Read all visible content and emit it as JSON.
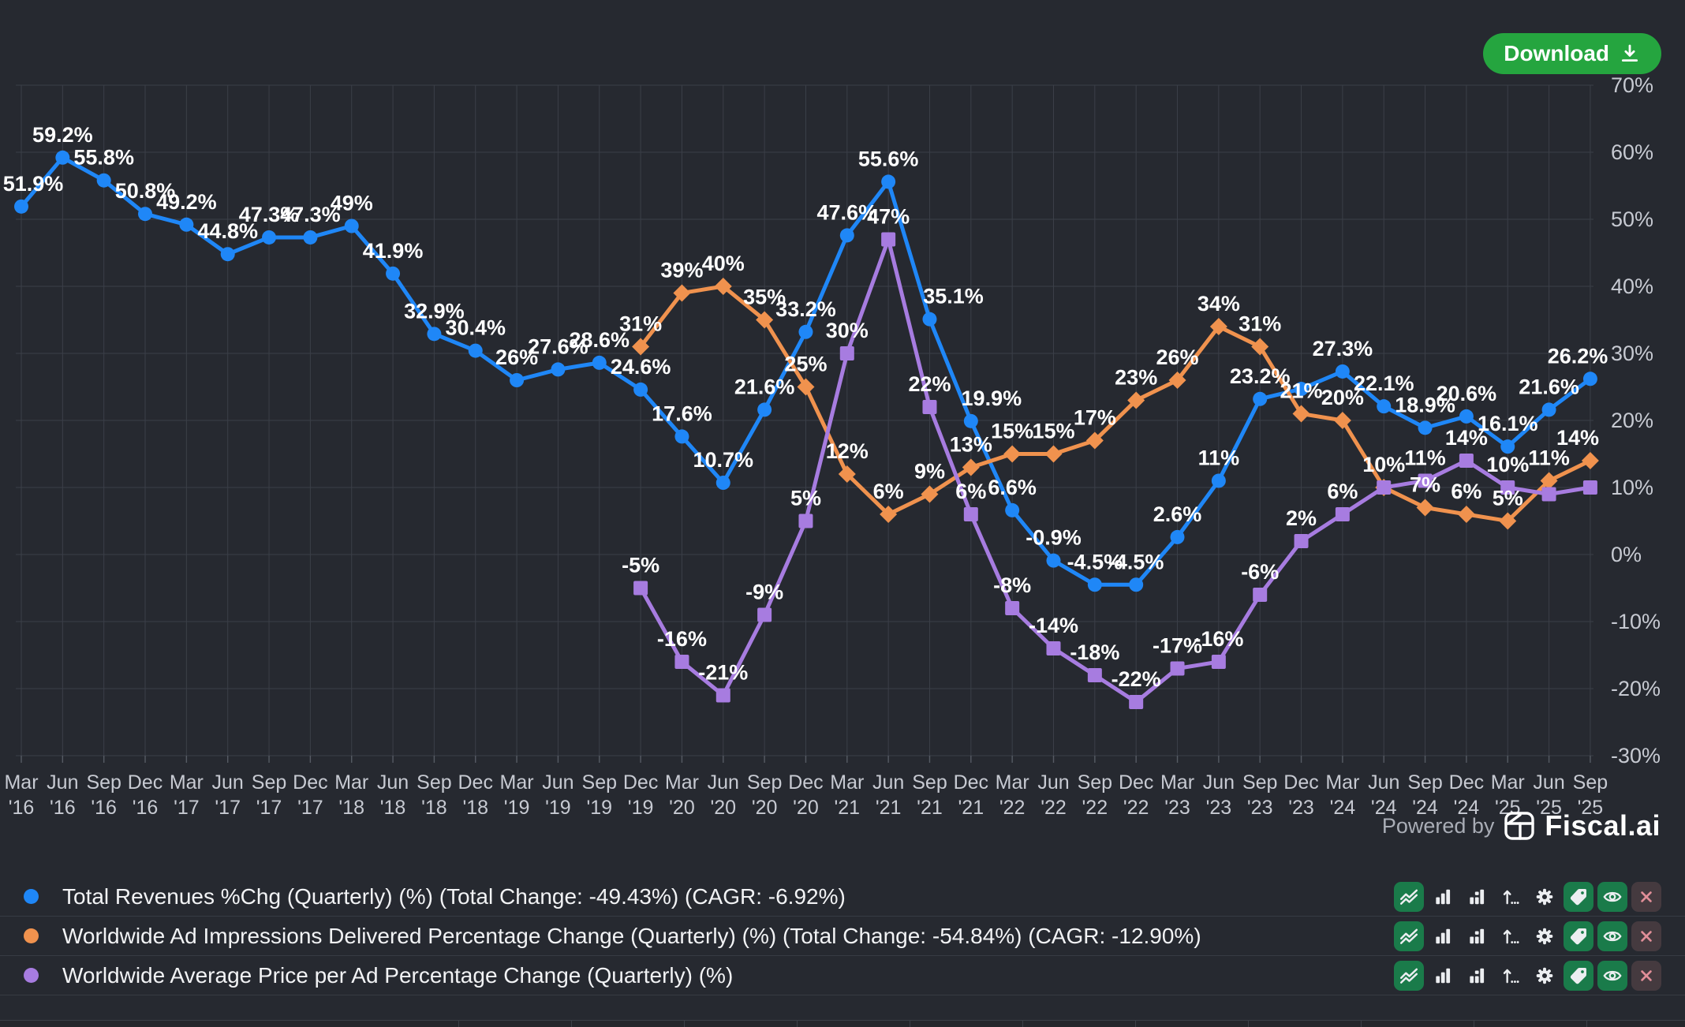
{
  "header": {
    "download_label": "Download"
  },
  "branding": {
    "powered_by": "Powered by",
    "brand": "Fiscal.ai"
  },
  "colors": {
    "background": "#262930",
    "grid": "#3b3f48",
    "tick": "#565b64",
    "axis_text": "#c7cad2",
    "data_label": "#ffffff",
    "blue": "#1f87f7",
    "orange": "#f0924e",
    "purple": "#a77ce0",
    "download_green": "#25a53f",
    "chip_green": "#1a7b4a",
    "chip_red_bg": "#453a3f",
    "close_x": "#e18e98",
    "legend_text": "#f2f3f5",
    "muted_text": "#a9adb6"
  },
  "chart_data": {
    "type": "line",
    "grid": true,
    "legend_position": "bottom",
    "y_axis": {
      "min": -30,
      "max": 70,
      "step": 10,
      "unit": "%",
      "tick_labels": [
        "70%",
        "60%",
        "50%",
        "40%",
        "30%",
        "20%",
        "10%",
        "0%",
        "-10%",
        "-20%",
        "-30%"
      ]
    },
    "x_labels": [
      "Mar '16",
      "Jun '16",
      "Sep '16",
      "Dec '16",
      "Mar '17",
      "Jun '17",
      "Sep '17",
      "Dec '17",
      "Mar '18",
      "Jun '18",
      "Sep '18",
      "Dec '18",
      "Mar '19",
      "Jun '19",
      "Sep '19",
      "Dec '19",
      "Mar '20",
      "Jun '20",
      "Sep '20",
      "Dec '20",
      "Mar '21",
      "Jun '21",
      "Sep '21",
      "Dec '21",
      "Mar '22",
      "Jun '22",
      "Sep '22",
      "Dec '22",
      "Mar '23",
      "Jun '23",
      "Sep '23",
      "Dec '23",
      "Mar '24",
      "Jun '24",
      "Sep '24",
      "Dec '24",
      "Mar '25",
      "Jun '25",
      "Sep '25"
    ],
    "series": [
      {
        "name": "Total Revenues %Chg (Quarterly) (%)",
        "legend_label": "Total Revenues %Chg (Quarterly) (%) (Total Change: -49.43%) (CAGR: -6.92%)",
        "color": "#1f87f7",
        "marker": "circle",
        "start_index": 0,
        "values": [
          51.9,
          59.2,
          55.8,
          50.8,
          49.2,
          44.8,
          47.3,
          47.3,
          49,
          41.9,
          32.9,
          30.4,
          26,
          27.6,
          28.6,
          24.6,
          17.6,
          10.7,
          21.6,
          33.2,
          47.6,
          55.6,
          35.1,
          19.9,
          6.6,
          -0.9,
          -4.5,
          -4.5,
          2.6,
          11,
          23.2,
          24.7,
          27.3,
          22.1,
          18.9,
          20.6,
          16.1,
          21.6,
          26.2
        ],
        "labels": [
          "51.9%",
          "59.2%",
          "55.8%",
          "50.8%",
          "49.2%",
          "44.8%",
          "47.3%",
          "47.3%",
          "49%",
          "41.9%",
          "32.9%",
          "30.4%",
          "26%",
          "27.6%",
          "28.6%",
          "24.6%",
          "17.6%",
          "10.7%",
          "21.6%",
          "33.2%",
          "47.6%",
          "55.6%",
          "35.1%",
          "19.9%",
          "6.6%",
          "-0.9%",
          "-4.5%",
          "-4.5%",
          "2.6%",
          "11%",
          "23.2%",
          "",
          "27.3%",
          "22.1%",
          "18.9%",
          "20.6%",
          "16.1%",
          "21.6%",
          "26.2%"
        ]
      },
      {
        "name": "Worldwide Ad Impressions Delivered Percentage Change (Quarterly) (%)",
        "legend_label": "Worldwide Ad Impressions Delivered Percentage Change (Quarterly) (%) (Total Change: -54.84%) (CAGR: -12.90%)",
        "color": "#f0924e",
        "marker": "diamond",
        "start_index": 15,
        "values": [
          31,
          39,
          40,
          35,
          25,
          12,
          6,
          9,
          13,
          15,
          15,
          17,
          23,
          26,
          34,
          31,
          21,
          20,
          10,
          7,
          6,
          5,
          11,
          14
        ],
        "labels": [
          "31%",
          "39%",
          "40%",
          "35%",
          "25%",
          "12%",
          "6%",
          "9%",
          "13%",
          "15%",
          "15%",
          "17%",
          "23%",
          "26%",
          "34%",
          "31%",
          "21%",
          "20%",
          "10%",
          "7%",
          "6%",
          "5%",
          "11%",
          "14%"
        ]
      },
      {
        "name": "Worldwide Average Price per Ad Percentage Change (Quarterly) (%)",
        "legend_label": "Worldwide Average Price per Ad Percentage Change (Quarterly) (%)",
        "color": "#a77ce0",
        "marker": "square",
        "start_index": 15,
        "values": [
          -5,
          -16,
          -21,
          -9,
          5,
          30,
          47,
          22,
          6,
          -8,
          -14,
          -18,
          -22,
          -17,
          -16,
          -6,
          2,
          6,
          10,
          11,
          14,
          10,
          9,
          10
        ],
        "labels": [
          "-5%",
          "-16%",
          "-21%",
          "-9%",
          "5%",
          "30%",
          "47%",
          "22%",
          "6%",
          "-8%",
          "-14%",
          "-18%",
          "-22%",
          "-17%",
          "-16%",
          "-6%",
          "2%",
          "6%",
          "",
          "11%",
          "14%",
          "10%",
          "",
          ""
        ]
      }
    ]
  },
  "legend": {
    "icons": [
      {
        "name": "line-chart-icon",
        "style": "green"
      },
      {
        "name": "bar-chart-icon",
        "style": "plain"
      },
      {
        "name": "stacked-bar-chart-icon",
        "style": "plain"
      },
      {
        "name": "sort-arrow-icon",
        "style": "plain"
      },
      {
        "name": "gear-icon",
        "style": "plain"
      },
      {
        "name": "tag-icon",
        "style": "green"
      },
      {
        "name": "eye-icon",
        "style": "green"
      },
      {
        "name": "close-icon",
        "style": "red"
      }
    ]
  }
}
